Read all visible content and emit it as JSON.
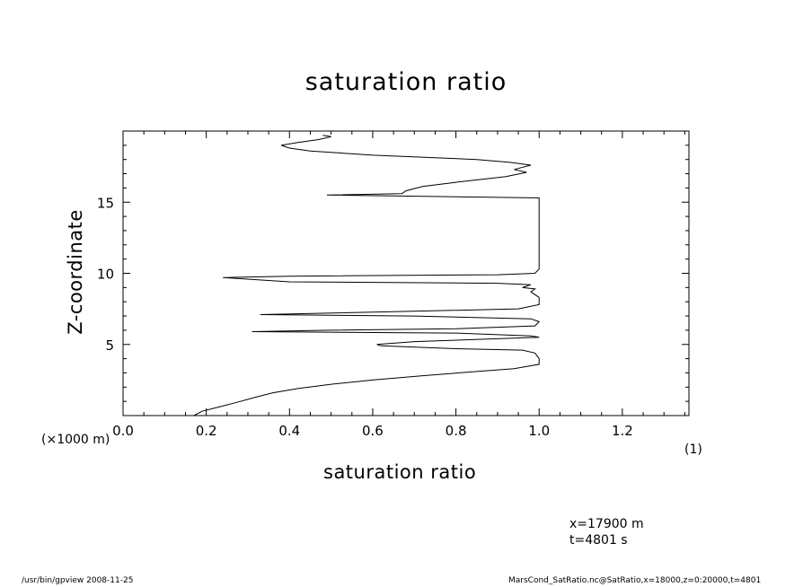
{
  "chart_data": {
    "type": "line",
    "title": "saturation ratio",
    "xlabel": "saturation ratio",
    "ylabel": "Z-coordinate",
    "y_unit_note": "(×1000 m)",
    "x_scale_note": "(1)",
    "xlim": [
      0.0,
      1.36
    ],
    "ylim": [
      0,
      20
    ],
    "xticks": [
      "0.0",
      "0.2",
      "0.4",
      "0.6",
      "0.8",
      "1.0",
      "1.2"
    ],
    "yticks": [
      "5",
      "10",
      "15"
    ],
    "series": [
      {
        "points": [
          [
            0.17,
            0.0
          ],
          [
            0.19,
            0.3
          ],
          [
            0.23,
            0.6
          ],
          [
            0.27,
            0.9
          ],
          [
            0.32,
            1.3
          ],
          [
            0.36,
            1.6
          ],
          [
            0.42,
            1.9
          ],
          [
            0.5,
            2.2
          ],
          [
            0.6,
            2.5
          ],
          [
            0.72,
            2.8
          ],
          [
            0.85,
            3.1
          ],
          [
            0.94,
            3.3
          ],
          [
            0.98,
            3.5
          ],
          [
            1.0,
            3.6
          ],
          [
            1.0,
            4.0
          ],
          [
            0.99,
            4.4
          ],
          [
            0.96,
            4.6
          ],
          [
            0.8,
            4.7
          ],
          [
            0.62,
            4.9
          ],
          [
            0.61,
            5.0
          ],
          [
            0.7,
            5.2
          ],
          [
            0.9,
            5.4
          ],
          [
            1.0,
            5.5
          ],
          [
            0.98,
            5.6
          ],
          [
            0.8,
            5.8
          ],
          [
            0.31,
            5.9
          ],
          [
            0.5,
            6.0
          ],
          [
            0.8,
            6.1
          ],
          [
            0.99,
            6.3
          ],
          [
            1.0,
            6.6
          ],
          [
            0.98,
            6.8
          ],
          [
            0.7,
            7.0
          ],
          [
            0.33,
            7.1
          ],
          [
            0.65,
            7.3
          ],
          [
            0.95,
            7.5
          ],
          [
            1.0,
            7.8
          ],
          [
            1.0,
            8.3
          ],
          [
            0.98,
            8.7
          ],
          [
            0.99,
            8.9
          ],
          [
            0.96,
            9.0
          ],
          [
            0.98,
            9.2
          ],
          [
            0.9,
            9.3
          ],
          [
            0.4,
            9.4
          ],
          [
            0.24,
            9.7
          ],
          [
            0.4,
            9.8
          ],
          [
            0.9,
            9.9
          ],
          [
            0.99,
            10.0
          ],
          [
            1.0,
            10.3
          ],
          [
            1.0,
            12.0
          ],
          [
            1.0,
            15.3
          ],
          [
            0.49,
            15.5
          ],
          [
            0.67,
            15.6
          ],
          [
            0.68,
            15.8
          ],
          [
            0.72,
            16.1
          ],
          [
            0.8,
            16.4
          ],
          [
            0.92,
            16.8
          ],
          [
            0.97,
            17.1
          ],
          [
            0.94,
            17.3
          ],
          [
            0.98,
            17.6
          ],
          [
            0.93,
            17.8
          ],
          [
            0.85,
            18.0
          ],
          [
            0.6,
            18.3
          ],
          [
            0.45,
            18.6
          ],
          [
            0.4,
            18.8
          ],
          [
            0.38,
            19.0
          ],
          [
            0.42,
            19.2
          ],
          [
            0.47,
            19.4
          ],
          [
            0.5,
            19.6
          ],
          [
            0.48,
            19.7
          ]
        ]
      }
    ]
  },
  "info": {
    "line1": "x=17900 m",
    "line2": "t=4801 s"
  },
  "footer": {
    "left": "/usr/bin/gpview   2008-11-25",
    "right": "MarsCond_SatRatio.nc@SatRatio,x=18000,z=0:20000,t=4801"
  }
}
